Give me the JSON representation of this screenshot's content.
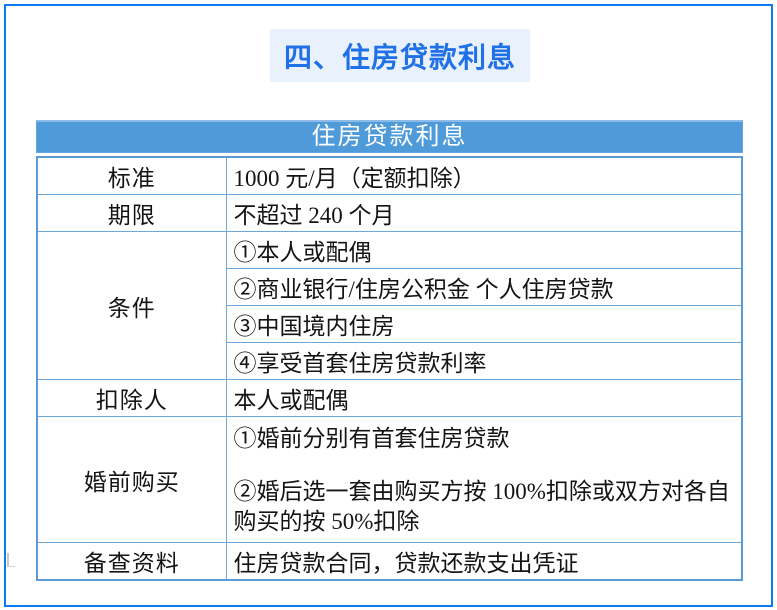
{
  "page": {
    "section_title": "四、住房贷款利息",
    "frame_color": "#0b7bf8",
    "title_color": "#2070e8",
    "title_bg": "#e9f1fc"
  },
  "table": {
    "title": "住房贷款利息",
    "header_bg": "#4f9bd9",
    "header_text_color": "#ffffff",
    "grid_color": "#6fa8dc",
    "rows": [
      {
        "label": "标准",
        "value": "1000 元/月（定额扣除）"
      },
      {
        "label": "期限",
        "value": "不超过 240 个月"
      },
      {
        "label": "条件",
        "items": [
          "①本人或配偶",
          "②商业银行/住房公积金 个人住房贷款",
          "③中国境内住房",
          "④享受首套住房贷款利率"
        ]
      },
      {
        "label": "扣除人",
        "value": "本人或配偶"
      },
      {
        "label": "婚前购买",
        "items": [
          "①婚前分别有首套住房贷款",
          "②婚后选一套由购买方按 100%扣除或双方对各自购买的按 50%扣除"
        ]
      },
      {
        "label": "备查资料",
        "value": "住房贷款合同，贷款还款支出凭证"
      }
    ]
  }
}
